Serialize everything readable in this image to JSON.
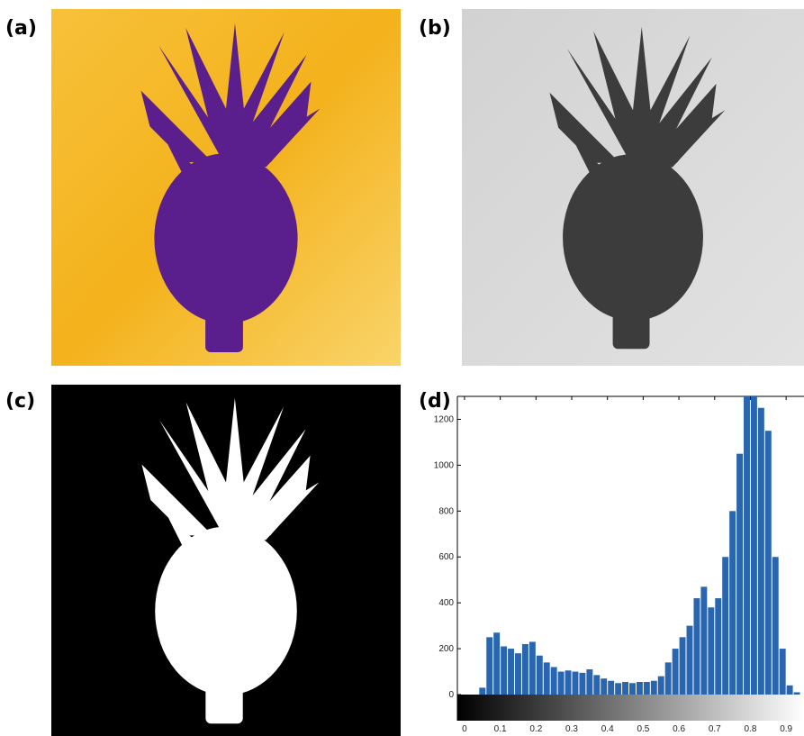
{
  "panels": {
    "a": "(a)",
    "b": "(b)",
    "c": "(c)",
    "d": "(d)"
  },
  "chart_data": {
    "type": "histogram",
    "bins": [
      0,
      0.02,
      0.04,
      0.06,
      0.08,
      0.1,
      0.12,
      0.14,
      0.16,
      0.18,
      0.2,
      0.22,
      0.24,
      0.26,
      0.28,
      0.3,
      0.32,
      0.34,
      0.36,
      0.38,
      0.4,
      0.42,
      0.44,
      0.46,
      0.48,
      0.5,
      0.52,
      0.54,
      0.56,
      0.58,
      0.6,
      0.62,
      0.64,
      0.66,
      0.68,
      0.7,
      0.72,
      0.74,
      0.76,
      0.78,
      0.8,
      0.82,
      0.84,
      0.86,
      0.88,
      0.9,
      0.92,
      0.94
    ],
    "values": [
      0,
      0,
      30,
      250,
      270,
      210,
      200,
      180,
      220,
      230,
      170,
      140,
      120,
      100,
      105,
      100,
      95,
      110,
      85,
      70,
      60,
      50,
      55,
      50,
      55,
      55,
      60,
      80,
      140,
      200,
      250,
      300,
      420,
      470,
      380,
      420,
      600,
      800,
      1050,
      1300,
      1300,
      1250,
      1150,
      600,
      200,
      40,
      10
    ],
    "color": "#2a66b0",
    "xlim": [
      -0.02,
      0.95
    ],
    "xticks": [
      0,
      0.1,
      0.2,
      0.3,
      0.4,
      0.5,
      0.6,
      0.7,
      0.8,
      0.9
    ],
    "ylim": [
      0,
      1300
    ],
    "yticks": [
      0,
      200,
      400,
      600,
      800,
      1000,
      1200
    ]
  }
}
